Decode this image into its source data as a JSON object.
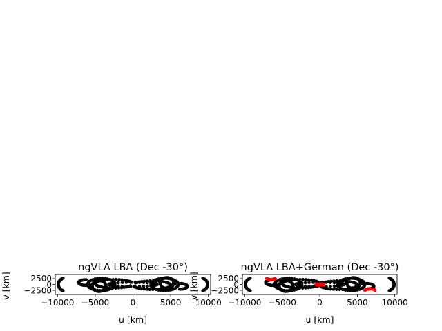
{
  "chart_data": [
    {
      "type": "scatter",
      "title": "ngVLA LBA (Dec -30°)",
      "xlabel": "u [km]",
      "ylabel": "v [km]",
      "xlim": [
        -10300,
        10300
      ],
      "ylim": [
        -4200,
        4200
      ],
      "xticks": [
        -10000,
        -5000,
        0,
        5000,
        10000
      ],
      "xtick_labels": [
        "−10000",
        "−5000",
        "0",
        "5000",
        "10000"
      ],
      "yticks": [
        2500,
        0,
        -2500
      ],
      "ytick_labels": [
        "2500",
        "0",
        "−2500"
      ],
      "grid": false,
      "series": [
        {
          "color": "#000000",
          "tracks": [
            {
              "cx": -8800,
              "cy": 0,
              "rx": 1100,
              "ry": 2900,
              "a0": 115,
              "a1": 245
            },
            {
              "cx": 8800,
              "cy": 0,
              "rx": 1100,
              "ry": 2900,
              "a0": -65,
              "a1": 65
            },
            {
              "cx": -4200,
              "cy": 0,
              "rx": 1800,
              "ry": 2600,
              "a0": 0,
              "a1": 360
            },
            {
              "cx": 4200,
              "cy": 0,
              "rx": 1800,
              "ry": 2600,
              "a0": 0,
              "a1": 360
            },
            {
              "cx": -2500,
              "cy": 300,
              "rx": 2500,
              "ry": 1800,
              "a0": 20,
              "a1": 330
            },
            {
              "cx": 2500,
              "cy": -300,
              "rx": 2500,
              "ry": 1800,
              "a0": 200,
              "a1": 510
            },
            {
              "cx": 0,
              "cy": 0,
              "rx": 3200,
              "ry": 900,
              "a0": 0,
              "a1": 360
            },
            {
              "cx": -4500,
              "cy": -600,
              "rx": 900,
              "ry": 2300,
              "a0": 0,
              "a1": 360
            },
            {
              "cx": 4500,
              "cy": 600,
              "rx": 900,
              "ry": 2300,
              "a0": 0,
              "a1": 360
            },
            {
              "cx": -6200,
              "cy": 800,
              "rx": 1000,
              "ry": 1200,
              "a0": 90,
              "a1": 300
            },
            {
              "cx": 6200,
              "cy": -800,
              "rx": 1000,
              "ry": 1200,
              "a0": 270,
              "a1": 480
            }
          ]
        }
      ]
    },
    {
      "type": "scatter",
      "title": "ngVLA LBA+German (Dec -30°)",
      "xlabel": "u [km]",
      "ylabel": "v [km]",
      "xlim": [
        -10300,
        10300
      ],
      "ylim": [
        -4200,
        4200
      ],
      "xticks": [
        -10000,
        -5000,
        0,
        5000,
        10000
      ],
      "xtick_labels": [
        "−10000",
        "−5000",
        "0",
        "5000",
        "10000"
      ],
      "yticks": [
        2500,
        0,
        -2500
      ],
      "ytick_labels": [
        "2500",
        "0",
        "−2500"
      ],
      "grid": false,
      "series": [
        {
          "color": "#000000",
          "tracks": [
            {
              "cx": -8800,
              "cy": 0,
              "rx": 1100,
              "ry": 2900,
              "a0": 115,
              "a1": 245
            },
            {
              "cx": 8800,
              "cy": 0,
              "rx": 1100,
              "ry": 2900,
              "a0": -65,
              "a1": 65
            },
            {
              "cx": -4200,
              "cy": 0,
              "rx": 1800,
              "ry": 2600,
              "a0": 0,
              "a1": 360
            },
            {
              "cx": 4200,
              "cy": 0,
              "rx": 1800,
              "ry": 2600,
              "a0": 0,
              "a1": 360
            },
            {
              "cx": -2500,
              "cy": 300,
              "rx": 2500,
              "ry": 1800,
              "a0": 20,
              "a1": 330
            },
            {
              "cx": 2500,
              "cy": -300,
              "rx": 2500,
              "ry": 1800,
              "a0": 200,
              "a1": 510
            },
            {
              "cx": 0,
              "cy": 0,
              "rx": 3200,
              "ry": 900,
              "a0": 0,
              "a1": 360
            },
            {
              "cx": -4500,
              "cy": -600,
              "rx": 900,
              "ry": 2300,
              "a0": 0,
              "a1": 360
            },
            {
              "cx": 4500,
              "cy": 600,
              "rx": 900,
              "ry": 2300,
              "a0": 0,
              "a1": 360
            },
            {
              "cx": -6200,
              "cy": 800,
              "rx": 1000,
              "ry": 1200,
              "a0": 90,
              "a1": 300
            },
            {
              "cx": 6200,
              "cy": -800,
              "rx": 1000,
              "ry": 1200,
              "a0": 270,
              "a1": 480
            }
          ]
        },
        {
          "color": "#ff0000",
          "tracks": [
            {
              "cx": -6500,
              "cy": 2800,
              "rx": 600,
              "ry": 700,
              "a0": 200,
              "a1": 340
            },
            {
              "cx": 6700,
              "cy": -2700,
              "rx": 700,
              "ry": 900,
              "a0": 20,
              "a1": 170
            },
            {
              "cx": 0,
              "cy": 0,
              "rx": 500,
              "ry": 200,
              "a0": 0,
              "a1": 360
            }
          ]
        }
      ]
    }
  ]
}
